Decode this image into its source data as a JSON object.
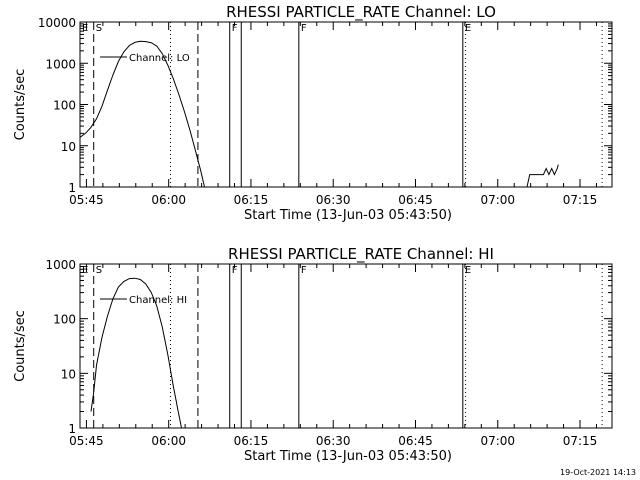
{
  "chart_data": [
    {
      "type": "line",
      "title": "RHESSI PARTICLE_RATE Channel: LO",
      "xlabel": "Start Time (13-Jun-03 05:43:50)",
      "ylabel": "Counts/sec",
      "yscale": "log",
      "ylim": [
        1,
        10000
      ],
      "xlim_minutes": [
        0,
        97
      ],
      "x_ticks": [
        {
          "m": 1.17,
          "label": "05:45"
        },
        {
          "m": 16.17,
          "label": "06:00"
        },
        {
          "m": 31.17,
          "label": "06:15"
        },
        {
          "m": 46.17,
          "label": "06:30"
        },
        {
          "m": 61.17,
          "label": "06:45"
        },
        {
          "m": 76.17,
          "label": "07:00"
        },
        {
          "m": 91.17,
          "label": "07:15"
        }
      ],
      "y_ticks": [
        {
          "v": 1,
          "label": "1"
        },
        {
          "v": 10,
          "label": "10"
        },
        {
          "v": 100,
          "label": "100"
        },
        {
          "v": 1000,
          "label": "1000"
        },
        {
          "v": 10000,
          "label": "10000"
        }
      ],
      "legend": "Channel: LO",
      "series": [
        {
          "name": "Channel: LO",
          "segments": [
            [
              [
                0,
                16
              ],
              [
                1,
                20
              ],
              [
                2,
                28
              ],
              [
                3,
                45
              ],
              [
                4,
                90
              ],
              [
                5,
                220
              ],
              [
                6,
                520
              ],
              [
                7,
                1100
              ],
              [
                8,
                1900
              ],
              [
                9,
                2700
              ],
              [
                10,
                3200
              ],
              [
                11,
                3400
              ],
              [
                12,
                3350
              ],
              [
                13,
                3150
              ],
              [
                14,
                2600
              ],
              [
                15,
                1700
              ],
              [
                16,
                900
              ],
              [
                17,
                430
              ],
              [
                18,
                180
              ],
              [
                19,
                70
              ],
              [
                20,
                25
              ],
              [
                21,
                8
              ],
              [
                22,
                2.5
              ],
              [
                22.7,
                1
              ]
            ],
            [
              [
                81.5,
                1
              ],
              [
                82,
                2
              ],
              [
                84.5,
                2
              ],
              [
                85,
                2.8
              ],
              [
                85.5,
                2
              ],
              [
                86,
                2.8
              ],
              [
                86.5,
                2
              ],
              [
                87,
                2.8
              ],
              [
                87.2,
                3.5
              ]
            ]
          ]
        }
      ],
      "flag_lines": [
        {
          "m": 2.5,
          "style": "dashed",
          "label": "S"
        },
        {
          "m": 16.5,
          "style": "dotted",
          "label": ""
        },
        {
          "m": 21.5,
          "style": "dashed",
          "label": ""
        },
        {
          "m": 27.3,
          "style": "solid",
          "label": "F"
        },
        {
          "m": 29.4,
          "style": "solid",
          "label": ""
        },
        {
          "m": 39.9,
          "style": "solid",
          "label": "F"
        },
        {
          "m": 69.8,
          "style": "solid",
          "label": "E"
        },
        {
          "m": 70.3,
          "style": "dotted",
          "label": ""
        },
        {
          "m": 95.2,
          "style": "dotted",
          "label": ""
        }
      ],
      "corner_label": "E"
    },
    {
      "type": "line",
      "title": "RHESSI PARTICLE_RATE Channel: HI",
      "xlabel": "Start Time (13-Jun-03 05:43:50)",
      "ylabel": "Counts/sec",
      "yscale": "log",
      "ylim": [
        1,
        1000
      ],
      "xlim_minutes": [
        0,
        97
      ],
      "x_ticks": [
        {
          "m": 1.17,
          "label": "05:45"
        },
        {
          "m": 16.17,
          "label": "06:00"
        },
        {
          "m": 31.17,
          "label": "06:15"
        },
        {
          "m": 46.17,
          "label": "06:30"
        },
        {
          "m": 61.17,
          "label": "06:45"
        },
        {
          "m": 76.17,
          "label": "07:00"
        },
        {
          "m": 91.17,
          "label": "07:15"
        }
      ],
      "y_ticks": [
        {
          "v": 1,
          "label": "1"
        },
        {
          "v": 10,
          "label": "10"
        },
        {
          "v": 100,
          "label": "100"
        },
        {
          "v": 1000,
          "label": "1000"
        }
      ],
      "legend": "Channel: HI",
      "series": [
        {
          "name": "Channel: HI",
          "segments": [
            [
              [
                2,
                2
              ],
              [
                2.5,
                4.5
              ],
              [
                3,
                14
              ],
              [
                4,
                45
              ],
              [
                5,
                110
              ],
              [
                6,
                230
              ],
              [
                7,
                380
              ],
              [
                8,
                480
              ],
              [
                9,
                540
              ],
              [
                10,
                550
              ],
              [
                11,
                520
              ],
              [
                12,
                430
              ],
              [
                13,
                300
              ],
              [
                14,
                170
              ],
              [
                15,
                70
              ],
              [
                16,
                22
              ],
              [
                17,
                6
              ],
              [
                18,
                1.8
              ],
              [
                18.5,
                1
              ]
            ]
          ]
        }
      ],
      "flag_lines": [
        {
          "m": 2.5,
          "style": "dashed",
          "label": "S"
        },
        {
          "m": 16.5,
          "style": "dotted",
          "label": ""
        },
        {
          "m": 21.5,
          "style": "dashed",
          "label": ""
        },
        {
          "m": 27.3,
          "style": "solid",
          "label": "F"
        },
        {
          "m": 29.4,
          "style": "solid",
          "label": ""
        },
        {
          "m": 39.9,
          "style": "solid",
          "label": "F"
        },
        {
          "m": 69.8,
          "style": "solid",
          "label": "E"
        },
        {
          "m": 70.3,
          "style": "dotted",
          "label": ""
        },
        {
          "m": 95.2,
          "style": "dotted",
          "label": ""
        }
      ],
      "corner_label": "E"
    }
  ],
  "timestamp": "19-Oct-2021 14:13"
}
